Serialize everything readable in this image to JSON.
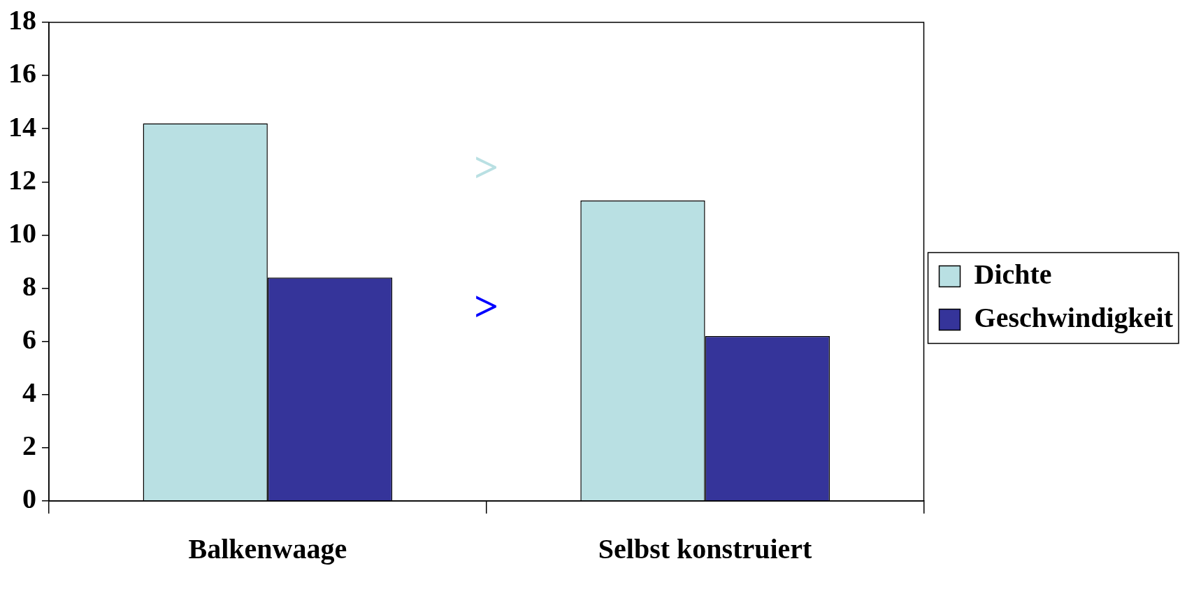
{
  "chart_data": {
    "type": "bar",
    "categories": [
      "Balkenwaage",
      "Selbst konstruiert"
    ],
    "series": [
      {
        "name": "Dichte",
        "color": "#b9e0e3",
        "values": [
          14.2,
          11.3
        ]
      },
      {
        "name": "Geschwindigkeit",
        "color": "#35349a",
        "values": [
          8.4,
          6.2
        ]
      }
    ],
    "ylim": [
      0,
      18
    ],
    "yticks": [
      0,
      2,
      4,
      6,
      8,
      10,
      12,
      14,
      16,
      18
    ],
    "grid": false,
    "legend": "right",
    "annotations": [
      ">",
      ">"
    ]
  }
}
